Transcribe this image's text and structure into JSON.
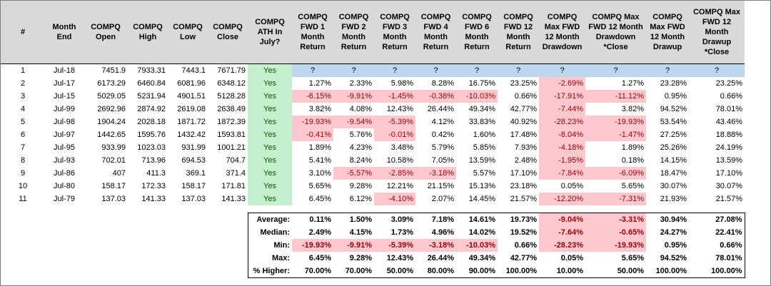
{
  "columns": [
    "#",
    "Month End",
    "COMPQ Open",
    "COMPQ High",
    "COMPQ Low",
    "COMPQ Close",
    "COMPQ ATH In July?",
    "COMPQ FWD 1 Month Return",
    "COMPQ FWD 2 Month Return",
    "COMPQ FWD 3 Month Return",
    "COMPQ FWD 4 Month Return",
    "COMPQ FWD 6 Month Return",
    "COMPQ FWD 12 Month Return",
    "COMPQ Max FWD 12 Month Drawdown",
    "COMPQ Max FWD 12 Month Drawdown *Close",
    "COMPQ Max FWD 12 Month Drawup",
    "COMPQ Max FWD 12 Month Drawup *Close"
  ],
  "rows": [
    {
      "n": "1",
      "month": "Jul-18",
      "open": "7451.9",
      "high": "7933.31",
      "low": "7443.1",
      "close": "7671.79",
      "ath": "Yes",
      "vals": [
        "?",
        "?",
        "?",
        "?",
        "?",
        "?",
        "?",
        "?",
        "?",
        "?"
      ],
      "neg": [
        false,
        false,
        false,
        false,
        false,
        false,
        false,
        false,
        false,
        false
      ]
    },
    {
      "n": "2",
      "month": "Jul-17",
      "open": "6173.29",
      "high": "6460.84",
      "low": "6081.96",
      "close": "6348.12",
      "ath": "Yes",
      "vals": [
        "1.27%",
        "2.33%",
        "5.98%",
        "8.28%",
        "16.75%",
        "23.25%",
        "-2.69%",
        "1.27%",
        "23.28%",
        "23.25%"
      ],
      "neg": [
        false,
        false,
        false,
        false,
        false,
        false,
        true,
        false,
        false,
        false
      ]
    },
    {
      "n": "3",
      "month": "Jul-15",
      "open": "5029.05",
      "high": "5231.94",
      "low": "4901.51",
      "close": "5128.28",
      "ath": "Yes",
      "vals": [
        "-6.15%",
        "-9.91%",
        "-1.45%",
        "-0.38%",
        "-10.03%",
        "0.66%",
        "-17.91%",
        "-11.12%",
        "0.95%",
        "0.66%"
      ],
      "neg": [
        true,
        true,
        true,
        true,
        true,
        false,
        true,
        true,
        false,
        false
      ]
    },
    {
      "n": "4",
      "month": "Jul-99",
      "open": "2692.96",
      "high": "2874.92",
      "low": "2619.08",
      "close": "2638.49",
      "ath": "Yes",
      "vals": [
        "3.82%",
        "4.08%",
        "12.43%",
        "26.44%",
        "49.34%",
        "42.77%",
        "-7.44%",
        "3.82%",
        "94.52%",
        "78.01%"
      ],
      "neg": [
        false,
        false,
        false,
        false,
        false,
        false,
        true,
        false,
        false,
        false
      ]
    },
    {
      "n": "5",
      "month": "Jul-98",
      "open": "1904.24",
      "high": "2028.18",
      "low": "1871.72",
      "close": "1872.39",
      "ath": "Yes",
      "vals": [
        "-19.93%",
        "-9.54%",
        "-5.39%",
        "4.12%",
        "33.83%",
        "40.92%",
        "-28.23%",
        "-19.93%",
        "53.54%",
        "43.46%"
      ],
      "neg": [
        true,
        true,
        true,
        false,
        false,
        false,
        true,
        true,
        false,
        false
      ]
    },
    {
      "n": "6",
      "month": "Jul-97",
      "open": "1442.65",
      "high": "1595.76",
      "low": "1432.42",
      "close": "1593.81",
      "ath": "Yes",
      "vals": [
        "-0.41%",
        "5.76%",
        "-0.01%",
        "0.42%",
        "1.60%",
        "17.48%",
        "-8.04%",
        "-1.47%",
        "27.25%",
        "18.88%"
      ],
      "neg": [
        true,
        false,
        true,
        false,
        false,
        false,
        true,
        true,
        false,
        false
      ]
    },
    {
      "n": "7",
      "month": "Jul-95",
      "open": "933.99",
      "high": "1023.03",
      "low": "931.99",
      "close": "1001.21",
      "ath": "Yes",
      "vals": [
        "1.89%",
        "4.23%",
        "3.48%",
        "5.79%",
        "5.85%",
        "7.93%",
        "-4.18%",
        "1.89%",
        "25.26%",
        "24.19%"
      ],
      "neg": [
        false,
        false,
        false,
        false,
        false,
        false,
        true,
        false,
        false,
        false
      ]
    },
    {
      "n": "8",
      "month": "Jul-93",
      "open": "702.01",
      "high": "713.96",
      "low": "694.53",
      "close": "704.7",
      "ath": "Yes",
      "vals": [
        "5.41%",
        "8.24%",
        "10.58%",
        "7.05%",
        "13.59%",
        "2.48%",
        "-1.95%",
        "0.18%",
        "14.15%",
        "13.59%"
      ],
      "neg": [
        false,
        false,
        false,
        false,
        false,
        false,
        true,
        false,
        false,
        false
      ]
    },
    {
      "n": "9",
      "month": "Jul-86",
      "open": "407",
      "high": "411.3",
      "low": "369.1",
      "close": "371.4",
      "ath": "Yes",
      "vals": [
        "3.10%",
        "-5.57%",
        "-2.85%",
        "-3.18%",
        "5.57%",
        "17.10%",
        "-7.84%",
        "-6.09%",
        "18.47%",
        "17.10%"
      ],
      "neg": [
        false,
        true,
        true,
        true,
        false,
        false,
        true,
        true,
        false,
        false
      ]
    },
    {
      "n": "10",
      "month": "Jul-80",
      "open": "158.17",
      "high": "172.33",
      "low": "158.17",
      "close": "171.81",
      "ath": "Yes",
      "vals": [
        "5.65%",
        "9.28%",
        "12.21%",
        "21.15%",
        "15.13%",
        "23.18%",
        "0.05%",
        "5.65%",
        "30.07%",
        "30.07%"
      ],
      "neg": [
        false,
        false,
        false,
        false,
        false,
        false,
        false,
        false,
        false,
        false
      ]
    },
    {
      "n": "11",
      "month": "Jul-79",
      "open": "137.03",
      "high": "141.33",
      "low": "137.03",
      "close": "141.33",
      "ath": "Yes",
      "vals": [
        "6.45%",
        "6.12%",
        "-4.10%",
        "2.07%",
        "14.45%",
        "21.57%",
        "-12.20%",
        "-7.31%",
        "21.93%",
        "21.57%"
      ],
      "neg": [
        false,
        false,
        true,
        false,
        false,
        false,
        true,
        true,
        false,
        false
      ]
    }
  ],
  "stats": [
    {
      "label": "Average:",
      "vals": [
        "0.11%",
        "1.50%",
        "3.09%",
        "7.18%",
        "14.61%",
        "19.73%",
        "-9.04%",
        "-3.31%",
        "30.94%",
        "27.08%"
      ],
      "neg": [
        false,
        false,
        false,
        false,
        false,
        false,
        true,
        true,
        false,
        false
      ]
    },
    {
      "label": "Median:",
      "vals": [
        "2.49%",
        "4.15%",
        "1.73%",
        "4.96%",
        "14.02%",
        "19.52%",
        "-7.64%",
        "-0.65%",
        "24.27%",
        "22.41%"
      ],
      "neg": [
        false,
        false,
        false,
        false,
        false,
        false,
        true,
        true,
        false,
        false
      ]
    },
    {
      "label": "Min:",
      "vals": [
        "-19.93%",
        "-9.91%",
        "-5.39%",
        "-3.18%",
        "-10.03%",
        "0.66%",
        "-28.23%",
        "-19.93%",
        "0.95%",
        "0.66%"
      ],
      "neg": [
        true,
        true,
        true,
        true,
        true,
        false,
        true,
        true,
        false,
        false
      ]
    },
    {
      "label": "Max:",
      "vals": [
        "6.45%",
        "9.28%",
        "12.43%",
        "26.44%",
        "49.34%",
        "42.77%",
        "0.05%",
        "5.65%",
        "94.52%",
        "78.01%"
      ],
      "neg": [
        false,
        false,
        false,
        false,
        false,
        false,
        false,
        false,
        false,
        false
      ]
    },
    {
      "label": "% Higher:",
      "vals": [
        "70.00%",
        "70.00%",
        "50.00%",
        "80.00%",
        "90.00%",
        "100.00%",
        "10.00%",
        "50.00%",
        "100.00%",
        "100.00%"
      ],
      "neg": [
        false,
        false,
        false,
        false,
        false,
        false,
        false,
        false,
        false,
        false
      ]
    }
  ]
}
